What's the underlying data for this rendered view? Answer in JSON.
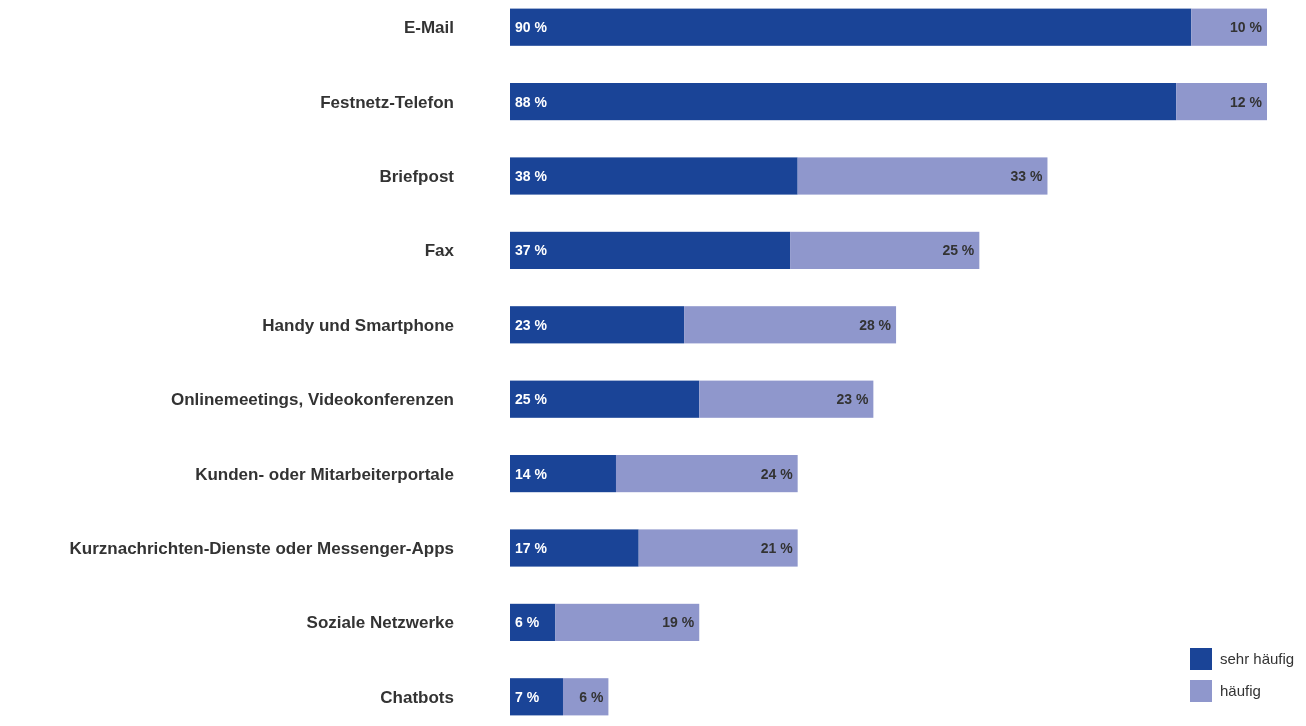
{
  "chart_data": {
    "type": "bar",
    "orientation": "horizontal",
    "stacked": true,
    "legend": "bottom right",
    "tick_labels": "y",
    "categories": [
      "E-Mail",
      "Festnetz-Telefon",
      "Briefpost",
      "Fax",
      "Handy und Smartphone",
      "Onlinemeetings, Videokonferenzen",
      "Kunden- oder Mitarbeiterportale",
      "Kurznachrichten-Dienste oder Messenger-Apps",
      "Soziale Netzwerke",
      "Chatbots"
    ],
    "series": [
      {
        "name": "sehr häufig",
        "color": "#1a4497",
        "values": [
          90,
          88,
          38,
          37,
          23,
          25,
          14,
          17,
          6,
          7
        ],
        "value_labels": [
          "90 %",
          "88 %",
          "38 %",
          "37 %",
          "23 %",
          "25 %",
          "14 %",
          "17 %",
          "6 %",
          "7 %"
        ]
      },
      {
        "name": "häufig",
        "color": "#8f97cc",
        "values": [
          10,
          12,
          33,
          25,
          28,
          23,
          24,
          21,
          19,
          6
        ],
        "value_labels": [
          "10 %",
          "12 %",
          "33 %",
          "25 %",
          "28 %",
          "23 %",
          "24 %",
          "21 %",
          "19 %",
          "6 %"
        ]
      }
    ]
  }
}
